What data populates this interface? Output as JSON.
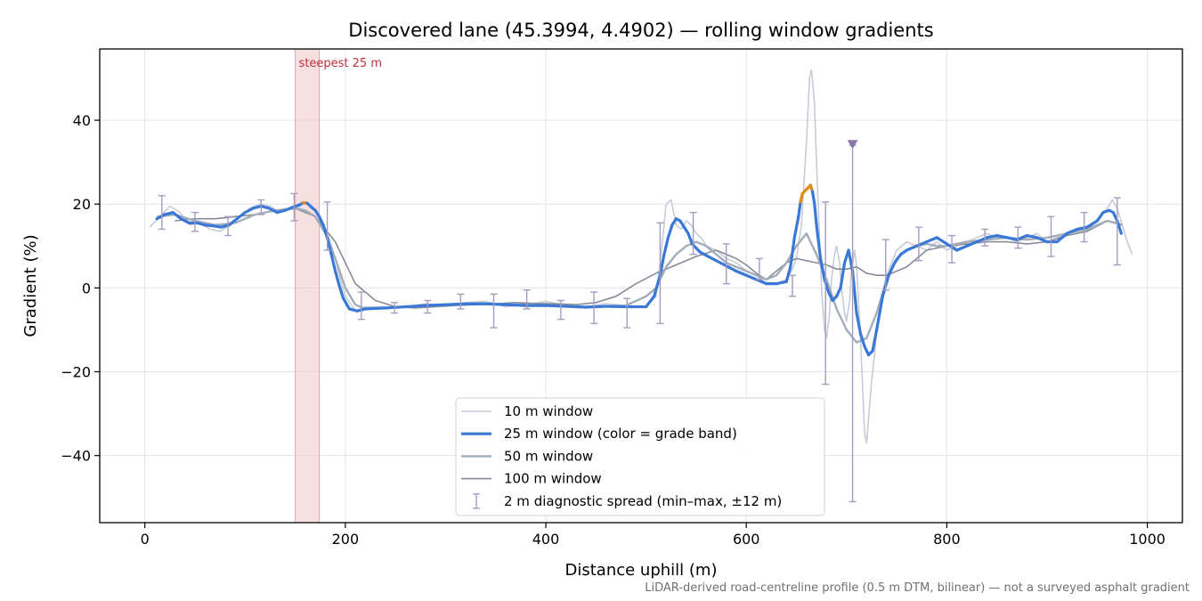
{
  "chart_data": {
    "type": "line",
    "title": "Discovered lane (45.3994, 4.4902) — rolling window gradients",
    "xlabel": "Distance uphill (m)",
    "ylabel": "Gradient (%)",
    "xlim": [
      -45,
      1035
    ],
    "ylim": [
      -56,
      57
    ],
    "xticks": [
      0,
      200,
      400,
      600,
      800,
      1000
    ],
    "xtick_labels": [
      "0",
      "200",
      "400",
      "600",
      "800",
      "1000"
    ],
    "yticks": [
      40,
      20,
      0,
      -20,
      -40
    ],
    "ytick_labels": [
      "40",
      "20",
      "0",
      "−20",
      "−40"
    ],
    "grid": true,
    "legend_position": "lower-center",
    "footnote": "LiDAR-derived road-centreline profile (0.5 m DTM, bilinear) — not a surveyed asphalt gradient",
    "highlight_band": {
      "x_start": 150,
      "x_end": 174,
      "label": "steepest 25 m",
      "color": "#f2c4c8"
    },
    "colors": {
      "w10": "#c5ccd6",
      "w25_normal": "#3a78d8",
      "w25_steep": "#e08a10",
      "w50": "#a2adbb",
      "w100": "#868c98",
      "spread": "#a49cc0",
      "spread_marker": "#8878a8"
    },
    "steep_band_threshold": 20,
    "series": [
      {
        "name": "10 m window",
        "x": [
          5,
          15,
          25,
          35,
          45,
          55,
          65,
          75,
          85,
          95,
          105,
          115,
          125,
          135,
          145,
          150,
          155,
          160,
          165,
          170,
          175,
          180,
          185,
          190,
          195,
          200,
          210,
          220,
          240,
          260,
          280,
          300,
          320,
          340,
          360,
          380,
          400,
          420,
          440,
          460,
          480,
          500,
          510,
          515,
          520,
          525,
          530,
          535,
          540,
          545,
          550,
          555,
          560,
          570,
          580,
          590,
          600,
          610,
          620,
          630,
          640,
          645,
          650,
          655,
          660,
          663,
          665,
          668,
          670,
          673,
          675,
          678,
          680,
          683,
          685,
          688,
          690,
          693,
          695,
          698,
          700,
          703,
          705,
          708,
          710,
          713,
          715,
          718,
          720,
          723,
          725,
          728,
          730,
          735,
          740,
          745,
          750,
          755,
          760,
          770,
          780,
          790,
          800,
          810,
          820,
          830,
          840,
          850,
          860,
          870,
          880,
          890,
          900,
          910,
          920,
          930,
          940,
          950,
          960,
          965,
          970,
          975,
          980,
          985
        ],
        "y": [
          14.5,
          17,
          19.5,
          18,
          15,
          15.5,
          14,
          13.5,
          15,
          17,
          19,
          20,
          19.5,
          18,
          19,
          18.5,
          19.5,
          20.5,
          20,
          18.5,
          17,
          14,
          11,
          7,
          2,
          -2,
          -5.5,
          -4.5,
          -4.5,
          -4.5,
          -3.8,
          -4.2,
          -3.5,
          -3.2,
          -4.5,
          -4,
          -3.2,
          -4.2,
          -4.5,
          -3.8,
          -4.2,
          -4.5,
          -2,
          8,
          20,
          21,
          15,
          14,
          16,
          15,
          13,
          12,
          10,
          9,
          7,
          6,
          4,
          3,
          1,
          1,
          2,
          4,
          7,
          15,
          35,
          50,
          52,
          44,
          30,
          12,
          0,
          -10,
          -12,
          -6,
          2,
          8,
          10,
          6,
          0,
          -6,
          -8,
          -3,
          4,
          9,
          5,
          -8,
          -18,
          -35,
          -37,
          -28,
          -22,
          -16,
          -10,
          -2,
          3,
          6,
          9,
          10,
          11,
          10,
          9,
          11,
          9,
          10,
          11,
          12,
          13,
          12,
          12,
          11,
          12,
          13,
          11,
          12,
          13,
          14,
          14,
          16,
          19,
          21,
          19,
          15,
          11,
          8
        ]
      },
      {
        "name": "25 m window (color = grade band)",
        "x": [
          12,
          20,
          28,
          36,
          44,
          52,
          60,
          68,
          76,
          84,
          92,
          100,
          108,
          116,
          124,
          132,
          140,
          148,
          154,
          158,
          162,
          166,
          170,
          174,
          178,
          182,
          186,
          190,
          194,
          198,
          204,
          212,
          220,
          240,
          260,
          280,
          300,
          320,
          340,
          360,
          380,
          400,
          420,
          440,
          460,
          480,
          500,
          508,
          514,
          518,
          522,
          526,
          530,
          534,
          538,
          542,
          546,
          550,
          554,
          558,
          566,
          574,
          582,
          590,
          600,
          610,
          620,
          630,
          640,
          644,
          648,
          652,
          654,
          656,
          658,
          660,
          662,
          664,
          666,
          668,
          670,
          674,
          678,
          682,
          686,
          690,
          694,
          698,
          702,
          706,
          710,
          714,
          718,
          722,
          726,
          730,
          736,
          742,
          748,
          754,
          760,
          770,
          780,
          790,
          800,
          810,
          820,
          830,
          840,
          850,
          860,
          870,
          880,
          890,
          900,
          910,
          920,
          930,
          940,
          950,
          956,
          962,
          966,
          970,
          974
        ],
        "y": [
          16.5,
          17.5,
          18,
          16.5,
          15.5,
          15.5,
          15,
          14.8,
          14.5,
          15,
          16.5,
          18,
          19,
          19.5,
          19,
          18,
          18.5,
          19.3,
          19.8,
          20.3,
          20.2,
          19.3,
          18.5,
          17,
          15,
          12,
          8,
          4,
          0.5,
          -2.5,
          -5,
          -5.5,
          -5,
          -4.8,
          -4.5,
          -4.2,
          -4,
          -3.8,
          -3.8,
          -4,
          -4.2,
          -4.2,
          -4.4,
          -4.6,
          -4.4,
          -4.5,
          -4.5,
          -2,
          3,
          8,
          12,
          15,
          16.5,
          16,
          14.5,
          13,
          10.5,
          9.5,
          8.5,
          8,
          7,
          6,
          5,
          4,
          3,
          2,
          1,
          1,
          1.5,
          5,
          12,
          17,
          20.5,
          22.5,
          23,
          23.5,
          24,
          24.5,
          23,
          20,
          15,
          7,
          2,
          -1,
          -3,
          -2,
          0,
          6,
          9,
          4,
          -6,
          -11,
          -14,
          -16,
          -15,
          -10,
          -2,
          3,
          6,
          8,
          9,
          10,
          11,
          12,
          10.5,
          9,
          10,
          11,
          12,
          12.5,
          12,
          11.5,
          12.5,
          12,
          11,
          11,
          13,
          14,
          14.5,
          16,
          18,
          18.5,
          18,
          16,
          13
        ]
      },
      {
        "name": "50 m window",
        "x": [
          12,
          30,
          50,
          70,
          90,
          110,
          130,
          150,
          160,
          170,
          180,
          190,
          200,
          210,
          220,
          240,
          260,
          280,
          300,
          320,
          340,
          360,
          380,
          400,
          420,
          440,
          460,
          480,
          500,
          510,
          520,
          530,
          540,
          550,
          560,
          570,
          580,
          590,
          600,
          610,
          620,
          630,
          640,
          650,
          660,
          670,
          680,
          690,
          700,
          710,
          720,
          730,
          740,
          750,
          760,
          770,
          780,
          790,
          800,
          820,
          840,
          860,
          880,
          900,
          920,
          940,
          960,
          975
        ],
        "y": [
          17,
          17.5,
          16,
          15,
          15.5,
          17.5,
          18.5,
          19,
          18.5,
          17,
          13,
          7,
          0,
          -4,
          -5,
          -4.8,
          -4.5,
          -4.2,
          -4,
          -3.8,
          -3.8,
          -4,
          -4,
          -4.2,
          -4.3,
          -4.5,
          -4.4,
          -4.2,
          -2,
          0,
          5,
          8,
          10,
          11,
          10,
          8,
          6,
          5,
          4,
          3,
          2,
          3,
          6,
          10,
          13,
          8,
          2,
          -5,
          -10,
          -13,
          -12,
          -6,
          2,
          7,
          9,
          10,
          10.5,
          10,
          10,
          11,
          11.5,
          12,
          11.5,
          12,
          13,
          14,
          16,
          15
        ]
      },
      {
        "name": "100 m window",
        "x": [
          30,
          50,
          70,
          90,
          110,
          130,
          150,
          170,
          190,
          210,
          230,
          250,
          270,
          290,
          310,
          330,
          350,
          370,
          390,
          410,
          430,
          450,
          470,
          490,
          510,
          530,
          550,
          570,
          590,
          600,
          610,
          620,
          630,
          640,
          650,
          660,
          670,
          680,
          690,
          700,
          710,
          720,
          730,
          740,
          750,
          760,
          780,
          800,
          820,
          840,
          860,
          880,
          900,
          920,
          940,
          960,
          970
        ],
        "y": [
          16,
          16.5,
          16.5,
          17,
          17.5,
          18.5,
          19,
          17,
          11,
          1,
          -3,
          -4.5,
          -4.8,
          -4.5,
          -4.2,
          -4,
          -3.8,
          -3.5,
          -3.7,
          -3.8,
          -4,
          -3.5,
          -2,
          1,
          3.5,
          5.5,
          7.5,
          9,
          7,
          5.5,
          3.5,
          2,
          4,
          6,
          7,
          6.5,
          6,
          5.5,
          4.5,
          4.5,
          5,
          3.5,
          3,
          3,
          4,
          5,
          9,
          10,
          10.5,
          11,
          11,
          10.5,
          11,
          12.5,
          13.5,
          16,
          15.5
        ]
      }
    ],
    "spread": {
      "name": "2 m diagnostic spread (min–max, ±12 m)",
      "points": [
        {
          "x": 17,
          "min": 14,
          "max": 22,
          "center": 17
        },
        {
          "x": 50,
          "min": 13.5,
          "max": 18,
          "center": 15.5
        },
        {
          "x": 83,
          "min": 12.5,
          "max": 17,
          "center": 15
        },
        {
          "x": 116,
          "min": 17.5,
          "max": 21,
          "center": 19.5
        },
        {
          "x": 149,
          "min": 16,
          "max": 22.5,
          "center": 19
        },
        {
          "x": 182,
          "min": 9,
          "max": 20.5,
          "center": 14
        },
        {
          "x": 216,
          "min": -7.5,
          "max": -1,
          "center": -5
        },
        {
          "x": 249,
          "min": -6,
          "max": -3.5,
          "center": -4.8
        },
        {
          "x": 282,
          "min": -6,
          "max": -3,
          "center": -4.5
        },
        {
          "x": 315,
          "min": -5,
          "max": -1.5,
          "center": -3.8
        },
        {
          "x": 348,
          "min": -9.5,
          "max": -1.5,
          "center": -3.8
        },
        {
          "x": 381,
          "min": -5,
          "max": -0.5,
          "center": -4
        },
        {
          "x": 415,
          "min": -7.5,
          "max": -3,
          "center": -4.2
        },
        {
          "x": 448,
          "min": -8.5,
          "max": -1,
          "center": -4.4
        },
        {
          "x": 481,
          "min": -9.5,
          "max": -2.5,
          "center": -4.5
        },
        {
          "x": 514,
          "min": -8.5,
          "max": 15.5,
          "center": 3
        },
        {
          "x": 547,
          "min": 8,
          "max": 18,
          "center": 13
        },
        {
          "x": 580,
          "min": 1,
          "max": 10.5,
          "center": 6
        },
        {
          "x": 613,
          "min": 2,
          "max": 7,
          "center": 3
        },
        {
          "x": 646,
          "min": -2,
          "max": 3,
          "center": 1
        },
        {
          "x": 679,
          "min": -23,
          "max": 20.5,
          "center": 2
        },
        {
          "x": 706,
          "min": -51,
          "max": 34,
          "center": -5,
          "marker": true
        },
        {
          "x": 739,
          "min": -0.5,
          "max": 11.5,
          "center": 4
        },
        {
          "x": 772,
          "min": 6.5,
          "max": 14.5,
          "center": 10.5
        },
        {
          "x": 805,
          "min": 6,
          "max": 12.5,
          "center": 9.5
        },
        {
          "x": 838,
          "min": 10,
          "max": 14,
          "center": 11.5
        },
        {
          "x": 871,
          "min": 9.5,
          "max": 14.5,
          "center": 12
        },
        {
          "x": 904,
          "min": 7.5,
          "max": 17,
          "center": 12
        },
        {
          "x": 937,
          "min": 11,
          "max": 18,
          "center": 14
        },
        {
          "x": 970,
          "min": 5.5,
          "max": 21.5,
          "center": 15
        }
      ]
    }
  }
}
